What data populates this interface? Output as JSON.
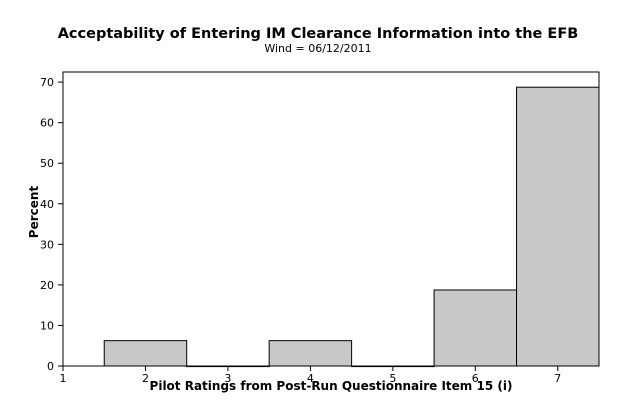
{
  "chart_data": {
    "type": "bar",
    "title": "Acceptability of Entering IM Clearance Information into the EFB",
    "subtitle": "Wind = 06/12/2011",
    "xlabel": "Pilot Ratings from Post-Run Questionnaire Item 15 (i)",
    "ylabel": "Percent",
    "x_ticks": [
      "1",
      "2",
      "3",
      "4",
      "5",
      "6",
      "7"
    ],
    "y_ticks": [
      "0",
      "10",
      "20",
      "30",
      "40",
      "50",
      "60",
      "70"
    ],
    "xlim": [
      1,
      7.5
    ],
    "ylim": [
      0,
      72.5
    ],
    "categories": [
      "2",
      "3",
      "4",
      "5",
      "6",
      "7"
    ],
    "values": [
      6.25,
      0,
      6.25,
      0,
      18.75,
      68.75
    ],
    "bar_color": "#c8c8c8",
    "bar_edge_color": "#000000",
    "grid": false
  }
}
